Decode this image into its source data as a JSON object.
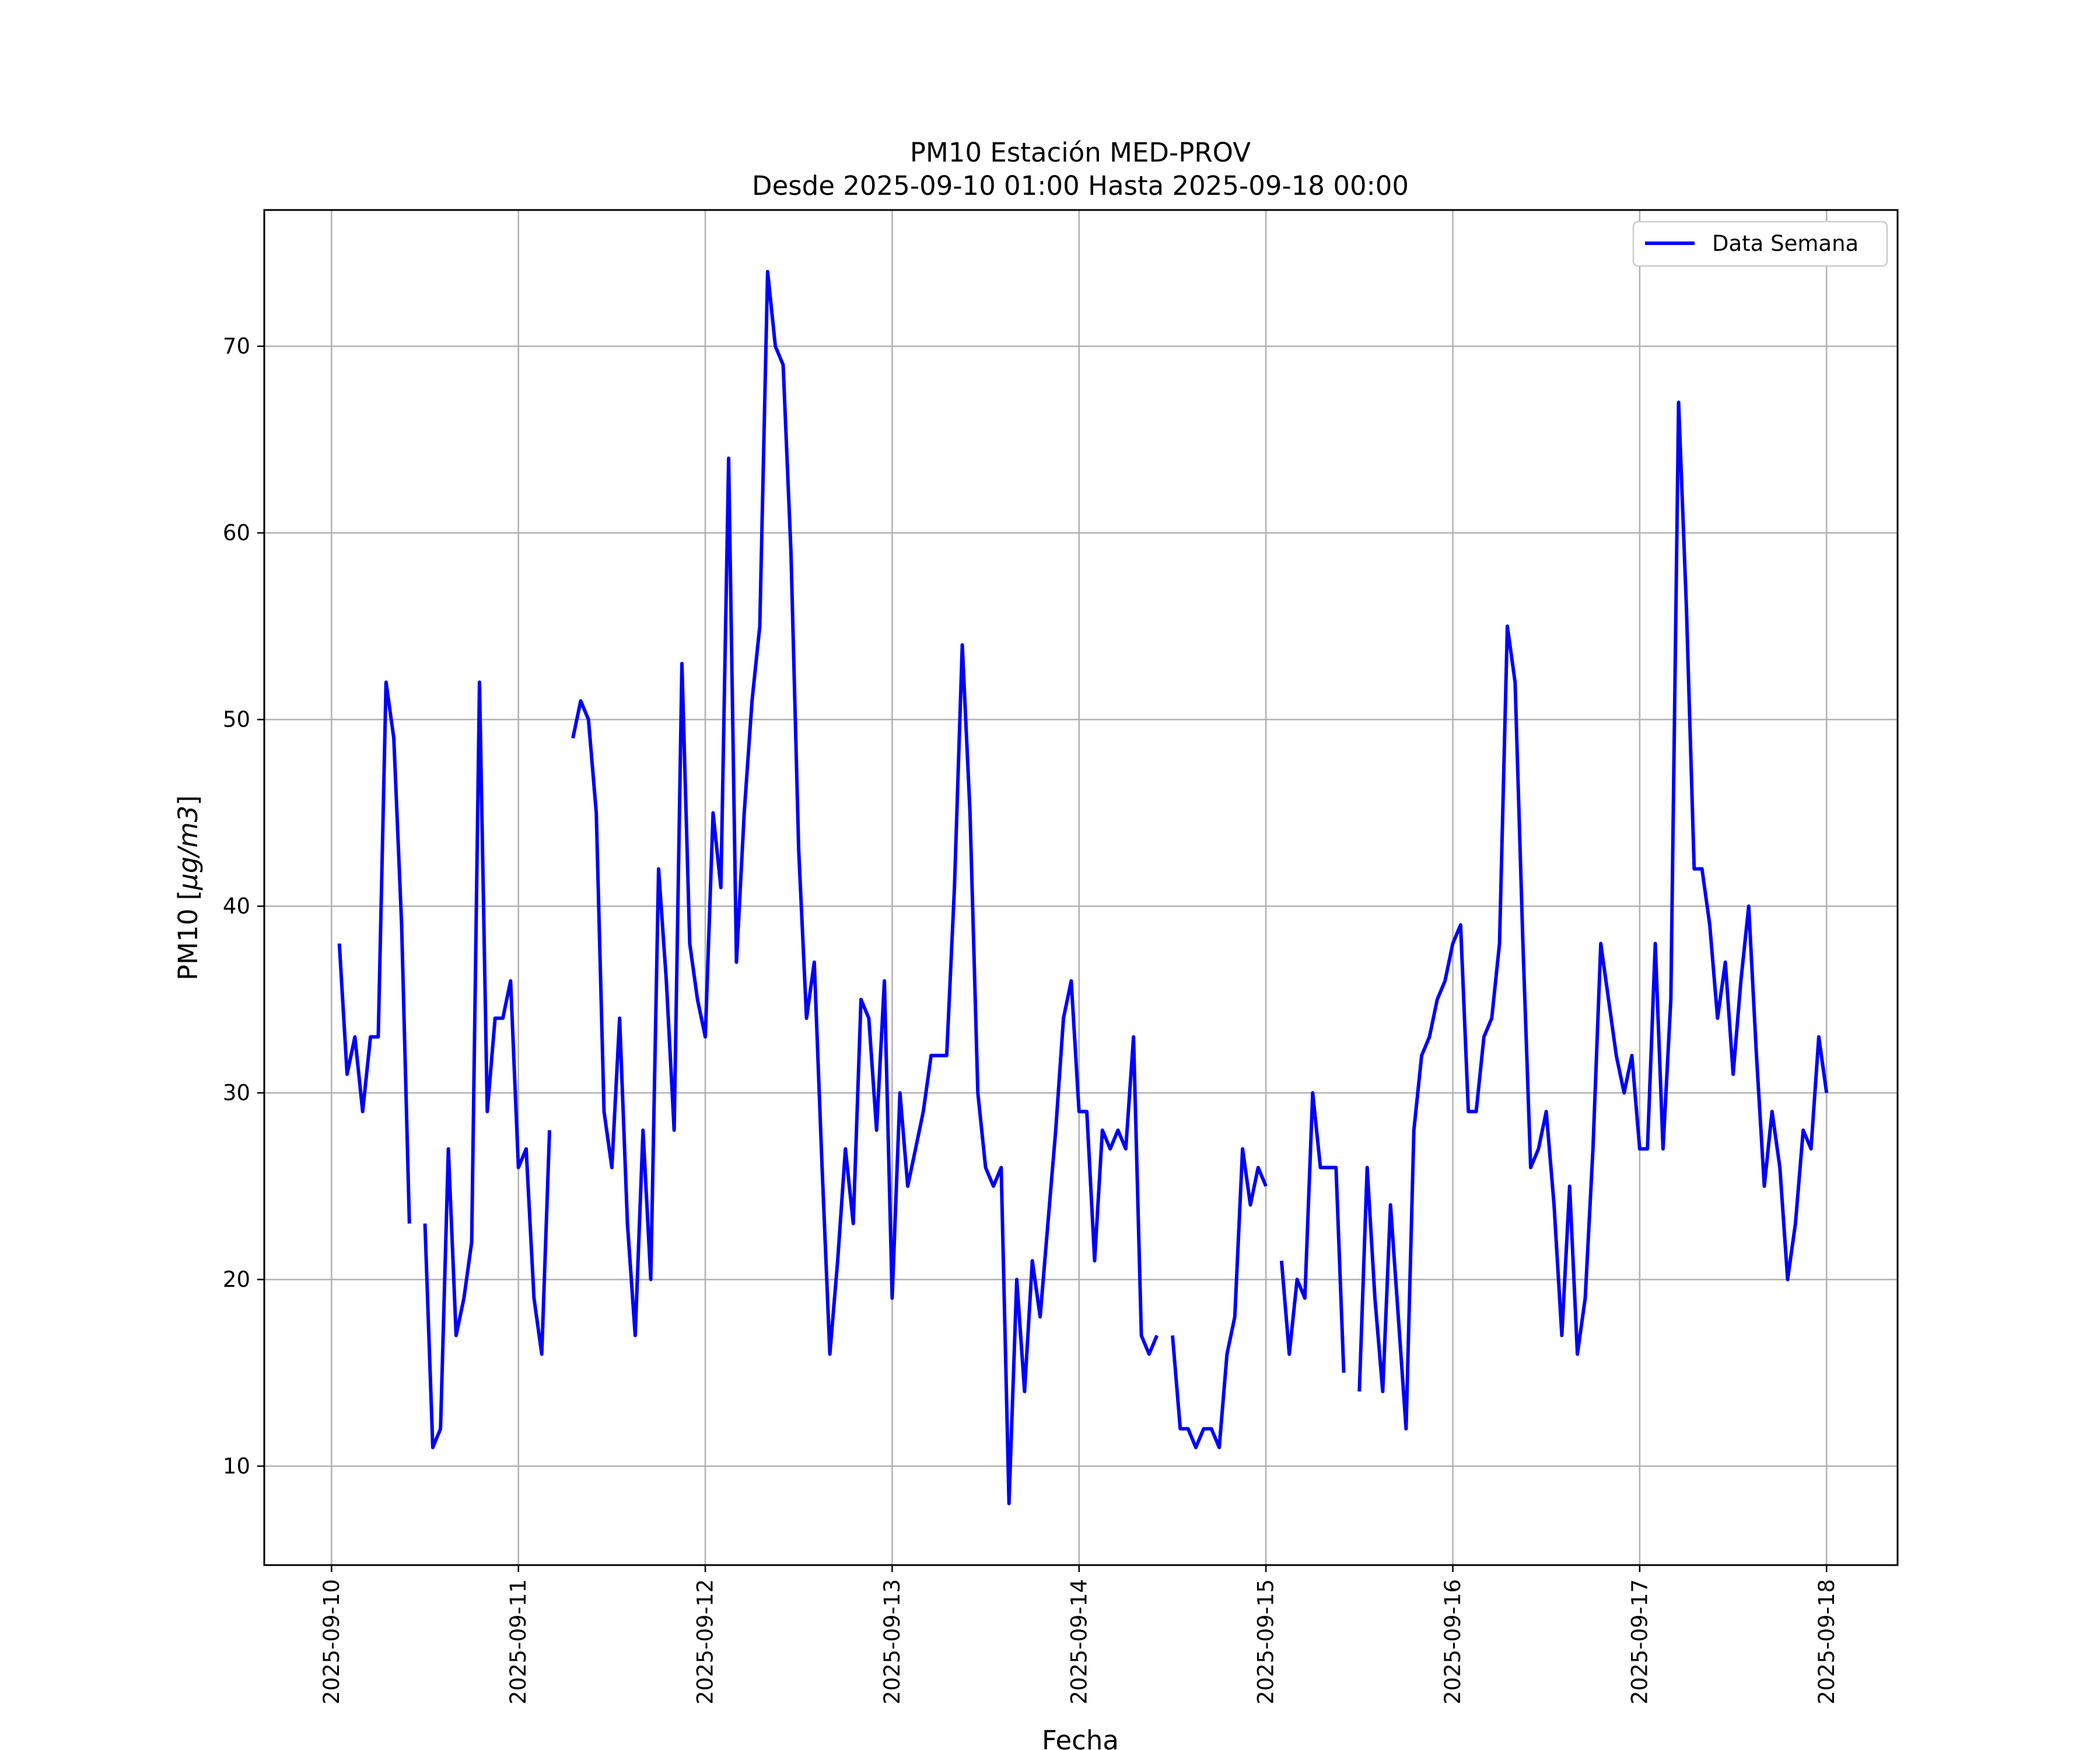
{
  "chart_data": {
    "type": "line",
    "title": "PM10 Estación MED-PROV",
    "subtitle": "Desde 2025-09-10 01:00 Hasta 2025-09-18 00:00",
    "xlabel": "Fecha",
    "ylabel_main": "PM10 [",
    "ylabel_unit": "μg/m3",
    "ylabel_end": "]",
    "x_ticks": [
      "2025-09-10",
      "2025-09-11",
      "2025-09-12",
      "2025-09-13",
      "2025-09-14",
      "2025-09-15",
      "2025-09-16",
      "2025-09-17",
      "2025-09-18"
    ],
    "y_ticks": [
      10,
      20,
      30,
      40,
      50,
      60,
      70
    ],
    "xlim_days": [
      -0.36,
      8.38
    ],
    "ylim": [
      4.7,
      77.3
    ],
    "grid": true,
    "legend_position": "top-right",
    "series": [
      {
        "name": "Data Semana",
        "color": "#0000ff",
        "start": "2025-09-10 01:00",
        "interval_hours": 1,
        "values": [
          38,
          31,
          33,
          29,
          33,
          33,
          52,
          49,
          39,
          23,
          null,
          23,
          11,
          12,
          27,
          17,
          19,
          22,
          52,
          29,
          34,
          34,
          36,
          26,
          27,
          19,
          16,
          28,
          null,
          null,
          49,
          51,
          50,
          45,
          29,
          26,
          34,
          23,
          17,
          28,
          20,
          42,
          36,
          28,
          53,
          38,
          35,
          33,
          45,
          41,
          64,
          37,
          45,
          51,
          55,
          74,
          70,
          69,
          59,
          43,
          34,
          37,
          26,
          16,
          21,
          27,
          23,
          35,
          34,
          28,
          36,
          19,
          30,
          25,
          27,
          29,
          32,
          32,
          32,
          41,
          54,
          45,
          30,
          26,
          25,
          26,
          8,
          20,
          14,
          21,
          18,
          23,
          28,
          34,
          36,
          29,
          29,
          21,
          28,
          27,
          28,
          27,
          33,
          17,
          16,
          17,
          null,
          17,
          12,
          12,
          11,
          12,
          12,
          11,
          16,
          18,
          27,
          24,
          26,
          25,
          null,
          21,
          16,
          20,
          19,
          30,
          26,
          26,
          26,
          15,
          null,
          14,
          26,
          19,
          14,
          24,
          18,
          12,
          28,
          32,
          33,
          35,
          36,
          38,
          39,
          29,
          29,
          33,
          34,
          38,
          55,
          52,
          38,
          26,
          27,
          29,
          24,
          17,
          25,
          16,
          19,
          27,
          38,
          35,
          32,
          30,
          32,
          27,
          27,
          38,
          27,
          35,
          67,
          56,
          42,
          42,
          39,
          34,
          37,
          31,
          36,
          40,
          32,
          25,
          29,
          26,
          20,
          23,
          28,
          27,
          33,
          30
        ]
      }
    ]
  }
}
